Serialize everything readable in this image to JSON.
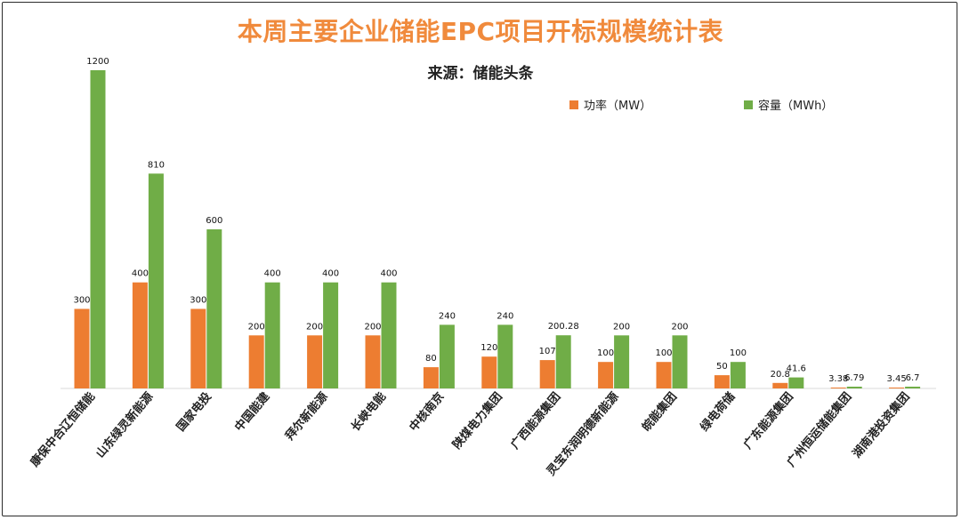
{
  "header": {
    "title": "本周主要企业储能EPC项目开标规模统计表",
    "subtitle": "来源：储能头条"
  },
  "colors": {
    "power": "#ED7D31",
    "capacity": "#70AD47",
    "title": "#F08A3C"
  },
  "chart_data": {
    "type": "bar",
    "title": "本周主要企业储能EPC项目开标规模统计表",
    "subtitle": "来源：储能头条",
    "categories": [
      "康保中合辽恒储能",
      "山东绿灵新能源",
      "国家电投",
      "中国能建",
      "拜尔新能源",
      "长峡电能",
      "中核南京",
      "陕煤电力集团",
      "广西能源集团",
      "灵宝东润明德新能源",
      "皖能集团",
      "绿电荷储",
      "广东能源集团",
      "广州恒运储能集团",
      "湖南港投资集团"
    ],
    "series": [
      {
        "name": "功率（MW）",
        "values": [
          300,
          400,
          300,
          200,
          200,
          200,
          80,
          120,
          107,
          100,
          100,
          50,
          20.8,
          3.38,
          3.45
        ]
      },
      {
        "name": "容量（MWh）",
        "values": [
          1200,
          810,
          600,
          400,
          400,
          400,
          240,
          240,
          200.28,
          200,
          200,
          100,
          41.6,
          6.79,
          6.7
        ]
      }
    ],
    "ylim": [
      0,
      1200
    ],
    "legend": "top-right",
    "grid": false
  }
}
